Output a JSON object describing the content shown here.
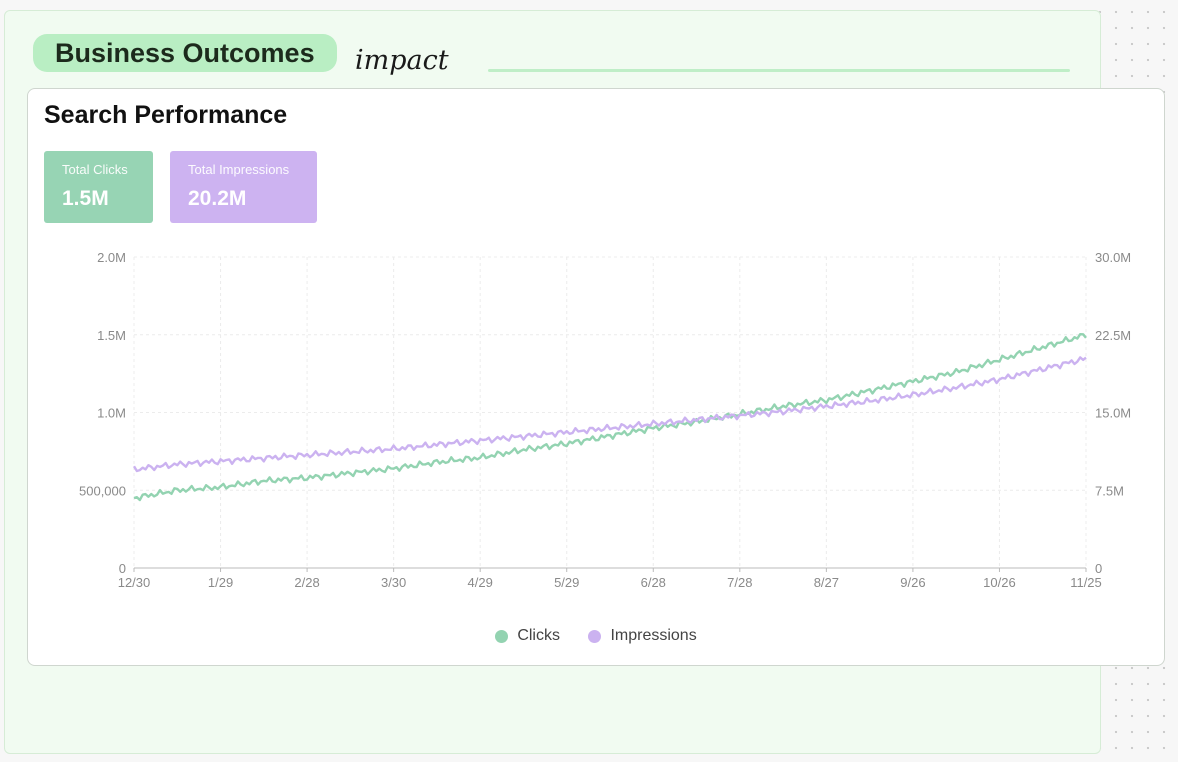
{
  "section": {
    "title": "Business Outcomes",
    "tag": "impact"
  },
  "card": {
    "title": "Search Performance",
    "stats": [
      {
        "label": "Total Clicks",
        "value": "1.5M"
      },
      {
        "label": "Total Impressions",
        "value": "20.2M"
      }
    ]
  },
  "colors": {
    "clicks": "#93d3b1",
    "impressions": "#cbb2f0",
    "section_pill": "#b9eec3",
    "board": "#f1fbf1"
  },
  "chart_data": {
    "type": "line",
    "x_tick_labels": [
      "12/30",
      "1/29",
      "2/28",
      "3/30",
      "4/29",
      "5/29",
      "6/28",
      "7/28",
      "8/27",
      "9/26",
      "10/26",
      "11/25"
    ],
    "y_left_ticks": [
      "0",
      "500,000",
      "1.0M",
      "1.5M",
      "2.0M"
    ],
    "y_right_ticks": [
      "0",
      "7.5M",
      "15.0M",
      "22.5M",
      "30.0M"
    ],
    "ylim_left": [
      0,
      2000000
    ],
    "ylim_right": [
      0,
      30000000
    ],
    "grid": true,
    "legend_position": "bottom-center",
    "series": [
      {
        "name": "Clicks",
        "axis": "left",
        "x": [
          "12/30",
          "1/13",
          "1/29",
          "2/13",
          "2/28",
          "3/15",
          "3/30",
          "4/14",
          "4/29",
          "5/14",
          "5/29",
          "6/13",
          "6/28",
          "7/13",
          "7/28",
          "8/12",
          "8/27",
          "9/11",
          "9/26",
          "10/11",
          "10/26",
          "11/10",
          "11/25"
        ],
        "values": [
          450000,
          500000,
          520000,
          560000,
          580000,
          610000,
          640000,
          680000,
          710000,
          760000,
          800000,
          850000,
          900000,
          940000,
          990000,
          1040000,
          1080000,
          1140000,
          1200000,
          1260000,
          1340000,
          1420000,
          1500000
        ]
      },
      {
        "name": "Impressions",
        "axis": "right",
        "x": [
          "12/30",
          "1/13",
          "1/29",
          "2/13",
          "2/28",
          "3/15",
          "3/30",
          "4/14",
          "4/29",
          "5/14",
          "5/29",
          "6/13",
          "6/28",
          "7/13",
          "7/28",
          "8/12",
          "8/27",
          "9/11",
          "9/26",
          "10/11",
          "10/26",
          "11/10",
          "11/25"
        ],
        "values": [
          9500000,
          10000000,
          10300000,
          10600000,
          10900000,
          11200000,
          11500000,
          11900000,
          12300000,
          12700000,
          13100000,
          13500000,
          13900000,
          14300000,
          14700000,
          15100000,
          15600000,
          16100000,
          16700000,
          17400000,
          18200000,
          19200000,
          20200000
        ]
      }
    ]
  }
}
